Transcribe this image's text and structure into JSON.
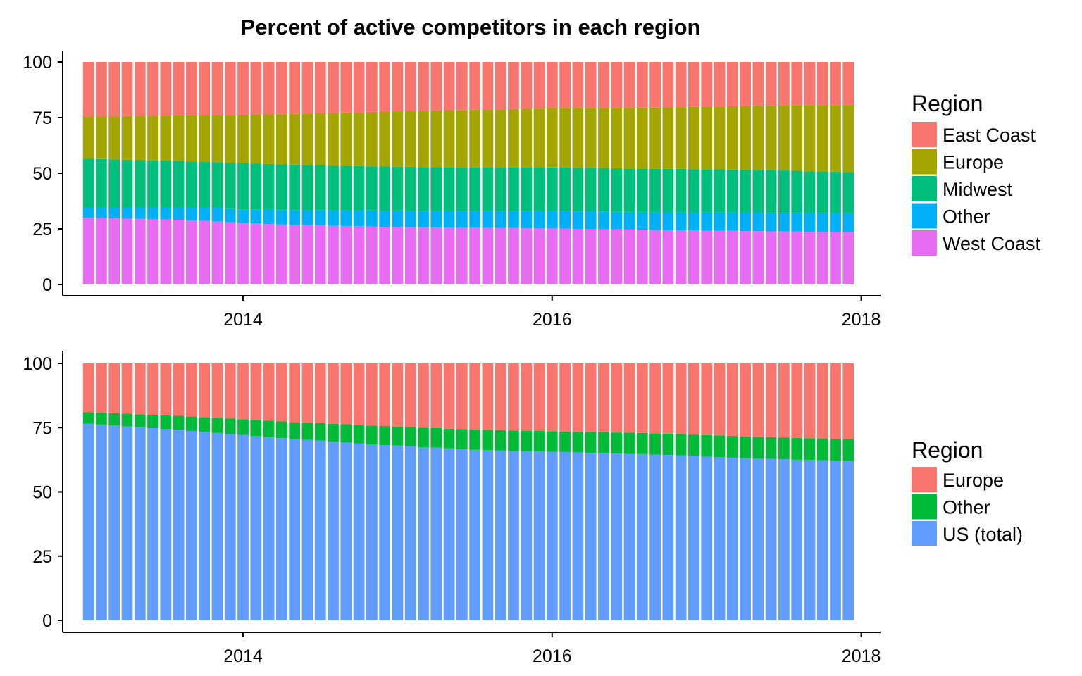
{
  "chart_data": [
    {
      "type": "bar",
      "stacked": true,
      "title": "Percent of active competitors in each region",
      "x_tick_labels": [
        "2014",
        "2016",
        "2018"
      ],
      "y_tick_labels": [
        "0",
        "25",
        "50",
        "75",
        "100"
      ],
      "ylim": [
        0,
        100
      ],
      "grid": false,
      "legend_title": "Region",
      "legend_position": "right",
      "x_start": "2013-01",
      "x_end": "2017-12",
      "series": [
        {
          "name": "West Coast",
          "color": "#E76BF3",
          "endpoints": [
            30,
            29,
            27,
            26,
            25.5,
            25,
            24.5,
            24,
            23.5
          ],
          "values": []
        },
        {
          "name": "Other",
          "color": "#00B0F6",
          "endpoints": [
            4.5,
            5.5,
            6.5,
            7.3,
            7.5,
            7.8,
            8,
            8.3,
            8.5
          ],
          "values": []
        },
        {
          "name": "Midwest",
          "color": "#00BF7D",
          "endpoints": [
            22,
            21,
            20.5,
            19.8,
            19.5,
            19.5,
            19.5,
            19.3,
            18.5
          ],
          "values": []
        },
        {
          "name": "Europe",
          "color": "#A3A500",
          "endpoints": [
            19,
            20.5,
            22.5,
            24.5,
            26,
            26.5,
            27.5,
            28.7,
            30
          ],
          "values": []
        },
        {
          "name": "East Coast",
          "color": "#F8766D",
          "endpoints": [
            24.5,
            24,
            23.5,
            22.4,
            21.5,
            20.7,
            20.5,
            19.7,
            19.5
          ],
          "values": []
        }
      ],
      "legend_entries": [
        {
          "name": "East Coast",
          "color": "#F8766D"
        },
        {
          "name": "Europe",
          "color": "#A3A500"
        },
        {
          "name": "Midwest",
          "color": "#00BF7D"
        },
        {
          "name": "Other",
          "color": "#00B0F6"
        },
        {
          "name": "West Coast",
          "color": "#E76BF3"
        }
      ]
    },
    {
      "type": "bar",
      "stacked": true,
      "title": "",
      "x_tick_labels": [
        "2014",
        "2016",
        "2018"
      ],
      "y_tick_labels": [
        "0",
        "25",
        "50",
        "75",
        "100"
      ],
      "ylim": [
        0,
        100
      ],
      "grid": false,
      "legend_title": "Region",
      "legend_position": "right",
      "x_start": "2013-01",
      "x_end": "2017-12",
      "series": [
        {
          "name": "US (total)",
          "color": "#619CFF",
          "endpoints": [
            76.5,
            74,
            71,
            68.5,
            66.5,
            65.5,
            64.5,
            63,
            62
          ],
          "values": []
        },
        {
          "name": "Other",
          "color": "#00BA38",
          "endpoints": [
            4.5,
            5.5,
            6.5,
            7.3,
            7.8,
            8,
            8.3,
            8.5,
            8.5
          ],
          "values": []
        },
        {
          "name": "Europe",
          "color": "#F8766D",
          "endpoints": [
            19,
            20.5,
            22.5,
            24.2,
            25.7,
            26.5,
            27.2,
            28.5,
            29.5
          ],
          "values": []
        }
      ],
      "legend_entries": [
        {
          "name": "Europe",
          "color": "#F8766D"
        },
        {
          "name": "Other",
          "color": "#00BA38"
        },
        {
          "name": "US (total)",
          "color": "#619CFF"
        }
      ]
    }
  ]
}
